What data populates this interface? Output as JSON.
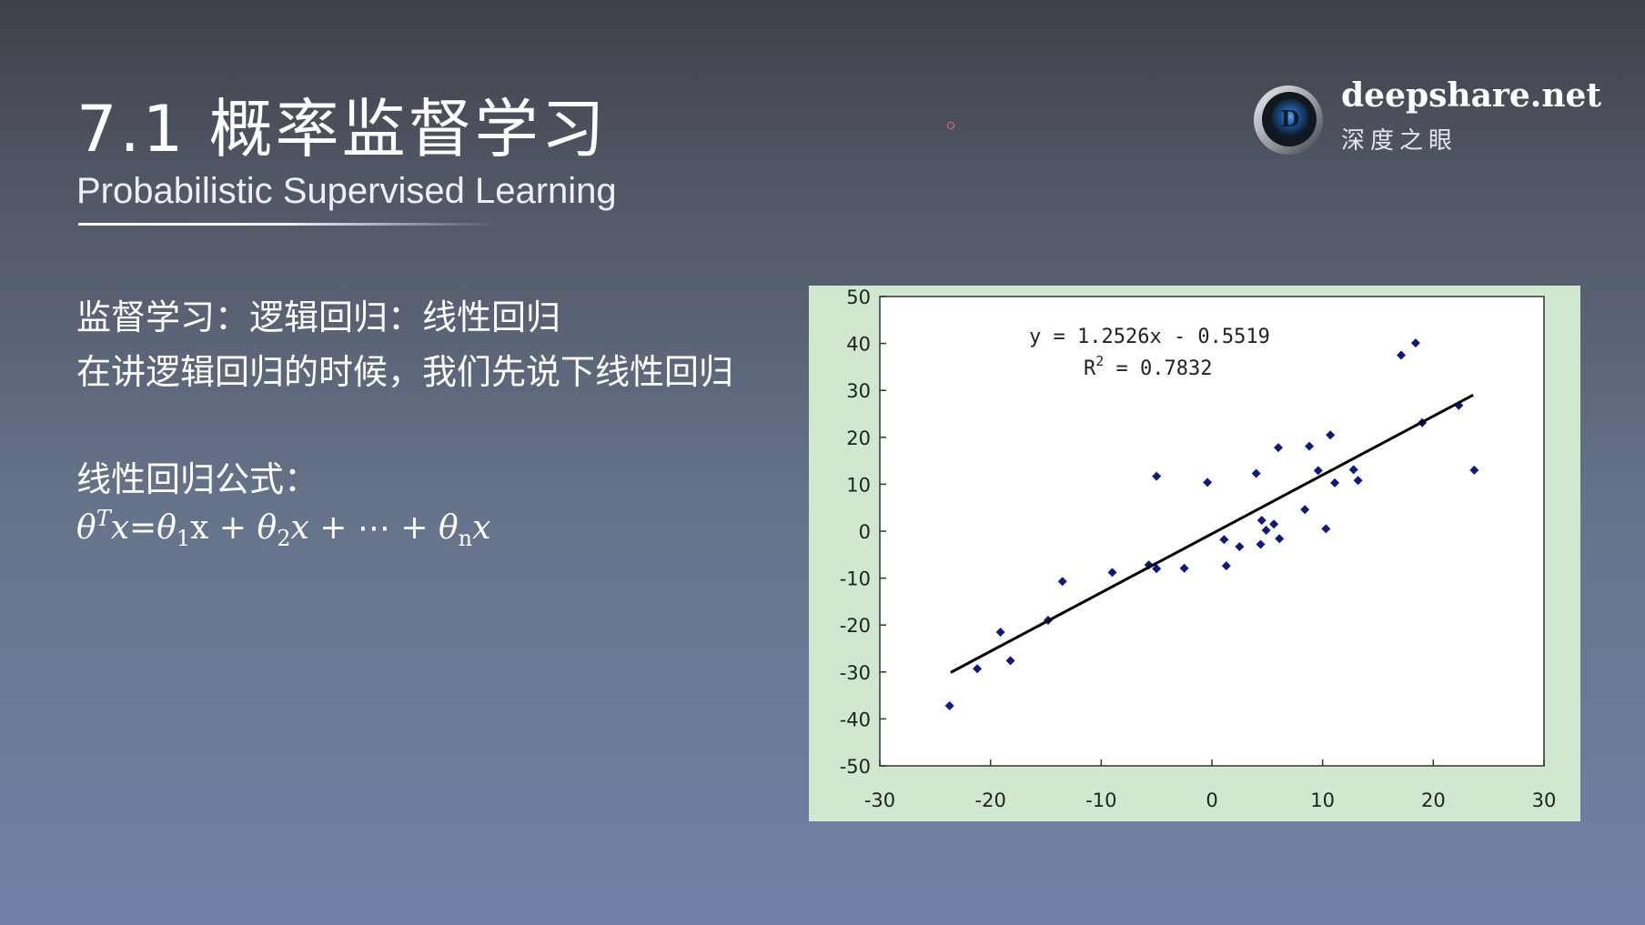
{
  "slide": {
    "title": "7.1 概率监督学习",
    "subtitle": "Probabilistic Supervised Learning",
    "line1": "监督学习：逻辑回归：线性回归",
    "line2": "在讲逻辑回归的时候，我们先说下线性回归",
    "formula_label": "线性回归公式：",
    "formula": {
      "theta": "θ",
      "sup_T": "T",
      "x": "x",
      "eq": "=",
      "x_upright": "x",
      "plus": " + ",
      "sub1": "1",
      "sub2": "2",
      "subn": "n",
      "dots": "⋯"
    }
  },
  "logo": {
    "icon": "eye-lens-icon",
    "letter": "D",
    "brand": "deepshare.net",
    "sub": "深度之眼"
  },
  "colors": {
    "chart_bg": "#cfe8cf",
    "marker": "#0d1a7a",
    "trend": "#000000"
  },
  "chart_data": {
    "type": "scatter",
    "xlim": [
      -30,
      30
    ],
    "ylim": [
      -50,
      50
    ],
    "x_ticks": [
      "-30",
      "-20",
      "-10",
      "0",
      "10",
      "20",
      "30"
    ],
    "y_ticks": [
      "50",
      "40",
      "30",
      "20",
      "10",
      "0",
      "-10",
      "-20",
      "-30",
      "-40",
      "-50"
    ],
    "x_tick_values": [
      -30,
      -20,
      -10,
      0,
      10,
      20,
      30
    ],
    "y_tick_values": [
      50,
      40,
      30,
      20,
      10,
      0,
      -10,
      -20,
      -30,
      -40,
      -50
    ],
    "grid": false,
    "equation": "y = 1.2526x - 0.5519",
    "r2_label": "R",
    "r2_sup": "2",
    "r2_value": " = 0.7832",
    "trendline": {
      "slope": 1.2526,
      "intercept": -0.5519,
      "x_from": -23.6,
      "x_to": 23.6
    },
    "points": [
      {
        "x": -23.7,
        "y": -37.2
      },
      {
        "x": -21.2,
        "y": -29.3
      },
      {
        "x": -19.1,
        "y": -21.5
      },
      {
        "x": -18.2,
        "y": -27.6
      },
      {
        "x": -14.8,
        "y": -19.0
      },
      {
        "x": -13.5,
        "y": -10.7
      },
      {
        "x": -9.0,
        "y": -8.8
      },
      {
        "x": -5.7,
        "y": -7.2
      },
      {
        "x": -5.0,
        "y": -8.0
      },
      {
        "x": -5.0,
        "y": 11.7
      },
      {
        "x": -2.5,
        "y": -7.9
      },
      {
        "x": -0.4,
        "y": 10.4
      },
      {
        "x": 1.1,
        "y": -1.8
      },
      {
        "x": 1.3,
        "y": -7.4
      },
      {
        "x": 2.5,
        "y": -3.3
      },
      {
        "x": 4.0,
        "y": 12.3
      },
      {
        "x": 4.4,
        "y": -2.8
      },
      {
        "x": 4.5,
        "y": 2.3
      },
      {
        "x": 4.9,
        "y": 0.2
      },
      {
        "x": 5.6,
        "y": 1.5
      },
      {
        "x": 6.0,
        "y": 17.8
      },
      {
        "x": 6.1,
        "y": -1.6
      },
      {
        "x": 8.4,
        "y": 4.6
      },
      {
        "x": 8.8,
        "y": 18.1
      },
      {
        "x": 9.6,
        "y": 12.9
      },
      {
        "x": 10.3,
        "y": 0.5
      },
      {
        "x": 10.7,
        "y": 20.5
      },
      {
        "x": 11.1,
        "y": 10.3
      },
      {
        "x": 12.8,
        "y": 13.1
      },
      {
        "x": 13.2,
        "y": 10.8
      },
      {
        "x": 17.1,
        "y": 37.5
      },
      {
        "x": 18.4,
        "y": 40.1
      },
      {
        "x": 19.0,
        "y": 23.1
      },
      {
        "x": 22.3,
        "y": 26.8
      },
      {
        "x": 23.7,
        "y": 13.0
      }
    ]
  }
}
